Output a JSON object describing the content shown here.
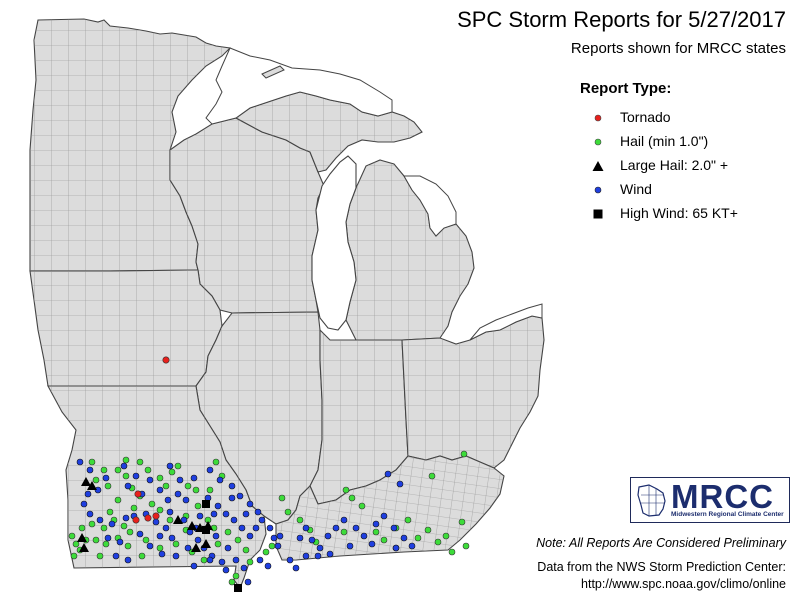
{
  "header": {
    "title": "SPC Storm Reports for 5/27/2017",
    "subtitle": "Reports shown for MRCC states"
  },
  "legend": {
    "title": "Report Type:",
    "items": [
      {
        "label": "Tornado",
        "symbol": "circle",
        "color": "#e8201c"
      },
      {
        "label": "Hail (min 1.0\")",
        "symbol": "circle",
        "color": "#3ddc3a"
      },
      {
        "label": "Large Hail: 2.0\" +",
        "symbol": "triangle",
        "color": "#000000"
      },
      {
        "label": "Wind",
        "symbol": "circle",
        "color": "#1f3fe0"
      },
      {
        "label": "High Wind: 65 KT+",
        "symbol": "square",
        "color": "#000000"
      }
    ]
  },
  "logo": {
    "name": "MRCC",
    "tagline": "Midwestern Regional Climate Center"
  },
  "footer": {
    "note": "Note: All Reports Are Considered Preliminary",
    "credit": "Data from the NWS Storm Prediction Center:",
    "url": "http://www.spc.noaa.gov/climo/online"
  },
  "colors": {
    "land": "#dcdcdc",
    "county_border": "#8c8c8c",
    "state_border": "#444444",
    "water": "#ffffff"
  },
  "states": [
    "Minnesota",
    "Wisconsin",
    "Michigan",
    "Iowa",
    "Illinois",
    "Indiana",
    "Ohio",
    "Missouri",
    "Kentucky"
  ],
  "reports": {
    "tornado_count": 5,
    "hail_count": 86,
    "large_hail_count": 10,
    "wind_count": 102,
    "high_wind_count": 3
  }
}
